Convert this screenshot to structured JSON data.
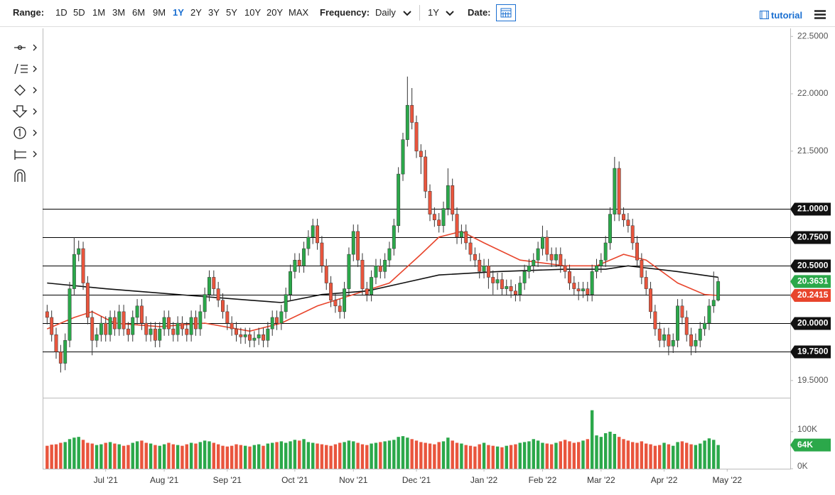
{
  "toolbar": {
    "range_label": "Range:",
    "ranges": [
      "1D",
      "5D",
      "1M",
      "3M",
      "6M",
      "9M",
      "1Y",
      "2Y",
      "3Y",
      "5Y",
      "10Y",
      "20Y",
      "MAX"
    ],
    "active_range_index": 6,
    "frequency_label": "Frequency:",
    "frequency": "Daily",
    "period": "1Y",
    "date_label": "Date:",
    "tutorial": "tutorial"
  },
  "chart_data": {
    "type": "candlestick",
    "up_color": "#2ba84a",
    "down_color": "#e9553d",
    "xlim": [
      -1,
      165
    ],
    "xticks": [
      {
        "value": 13,
        "label": "Jul '21"
      },
      {
        "value": 26,
        "label": "Aug '21"
      },
      {
        "value": 40,
        "label": "Sep '21"
      },
      {
        "value": 55,
        "label": "Oct '21"
      },
      {
        "value": 68,
        "label": "Nov '21"
      },
      {
        "value": 82,
        "label": "Dec '21"
      },
      {
        "value": 97,
        "label": "Jan '22"
      },
      {
        "value": 110,
        "label": "Feb '22"
      },
      {
        "value": 123,
        "label": "Mar '22"
      },
      {
        "value": 137,
        "label": "Apr '22"
      },
      {
        "value": 151,
        "label": "May '22"
      }
    ],
    "ylim": [
      19.35,
      22.57
    ],
    "yticks": [
      {
        "value": 19.5,
        "label": "19.5000"
      },
      {
        "value": 20,
        "label": "20.0000"
      },
      {
        "value": 20.5,
        "label": "20.5000"
      },
      {
        "value": 21,
        "label": "21.0000"
      },
      {
        "value": 21.5,
        "label": "21.5000"
      },
      {
        "value": 22,
        "label": "22.0000"
      },
      {
        "value": 22.5,
        "label": "22.5000"
      }
    ],
    "levels": [
      {
        "value": 21,
        "label": "21.0000"
      },
      {
        "value": 20.75,
        "label": "20.7500"
      },
      {
        "value": 20.5,
        "label": "20.5000"
      },
      20.25,
      {
        "value": 20,
        "label": "20.0000"
      },
      {
        "value": 19.75,
        "label": "19.7500"
      }
    ],
    "open": [
      20.1,
      20.05,
      19.9,
      19.75,
      19.65,
      19.85,
      20.3,
      20.6,
      20.65,
      20.35,
      20.05,
      19.85,
      19.9,
      20.0,
      19.9,
      20.05,
      19.95,
      20.1,
      19.95,
      19.9,
      20.05,
      20.15,
      20.0,
      19.9,
      19.95,
      19.85,
      19.95,
      20.05,
      19.95,
      19.9,
      20.0,
      19.95,
      19.9,
      20.05,
      19.95,
      20.1,
      20.25,
      20.4,
      20.3,
      20.2,
      20.1,
      20.0,
      19.95,
      19.9,
      19.88,
      19.9,
      19.85,
      19.87,
      19.9,
      19.85,
      19.95,
      20.05,
      20.0,
      20.1,
      20.25,
      20.45,
      20.55,
      20.5,
      20.65,
      20.75,
      20.85,
      20.7,
      20.5,
      20.35,
      20.2,
      20.15,
      20.1,
      20.3,
      20.6,
      20.8,
      20.55,
      20.3,
      20.25,
      20.4,
      20.5,
      20.45,
      20.55,
      20.65,
      20.85,
      21.3,
      21.6,
      21.9,
      21.75,
      21.5,
      21.45,
      21.15,
      20.95,
      20.9,
      20.85,
      21.0,
      21.2,
      20.95,
      20.75,
      20.8,
      20.7,
      20.6,
      20.55,
      20.45,
      20.5,
      20.4,
      20.35,
      20.38,
      20.3,
      20.32,
      20.28,
      20.25,
      20.35,
      20.45,
      20.5,
      20.55,
      20.65,
      20.75,
      20.6,
      20.55,
      20.6,
      20.5,
      20.45,
      20.35,
      20.3,
      20.28,
      20.3,
      20.25,
      20.45,
      20.5,
      20.55,
      20.7,
      20.95,
      21.35,
      20.95,
      20.9,
      20.85,
      20.7,
      20.55,
      20.4,
      20.3,
      20.1,
      19.95,
      19.85,
      19.9,
      19.8,
      19.85,
      20.15,
      20.05,
      19.9,
      19.8,
      19.85,
      19.95,
      20.0,
      20.15,
      20.2
    ],
    "high": [
      20.16,
      20.11,
      19.96,
      19.81,
      19.91,
      20.36,
      20.75,
      20.72,
      20.71,
      20.41,
      20.11,
      19.96,
      20.06,
      20.06,
      20.11,
      20.11,
      20.16,
      20.16,
      20.01,
      20.11,
      20.21,
      20.21,
      20.06,
      20.01,
      20.01,
      20.01,
      20.11,
      20.11,
      20.01,
      20.06,
      20.06,
      20.01,
      20.11,
      20.11,
      20.16,
      20.31,
      20.46,
      20.46,
      20.36,
      20.26,
      20.16,
      20.06,
      20.01,
      19.96,
      19.96,
      19.96,
      19.93,
      19.96,
      19.96,
      20.01,
      20.11,
      20.11,
      20.16,
      20.31,
      20.51,
      20.61,
      20.61,
      20.71,
      20.81,
      20.91,
      20.91,
      20.76,
      20.56,
      20.41,
      20.26,
      20.21,
      20.36,
      20.66,
      20.86,
      20.86,
      20.61,
      20.36,
      20.46,
      20.56,
      20.56,
      20.61,
      20.71,
      20.91,
      21.36,
      21.66,
      22.15,
      22.05,
      21.81,
      21.56,
      21.51,
      21.21,
      21.01,
      20.96,
      21.06,
      21.35,
      21.26,
      21.01,
      20.86,
      20.86,
      20.76,
      20.66,
      20.61,
      20.56,
      20.56,
      20.46,
      20.44,
      20.44,
      20.38,
      20.38,
      20.34,
      20.41,
      20.51,
      20.56,
      20.61,
      20.71,
      20.85,
      20.81,
      20.66,
      20.66,
      20.66,
      20.56,
      20.51,
      20.41,
      20.36,
      20.36,
      20.36,
      20.51,
      20.56,
      20.61,
      20.76,
      21.01,
      21.45,
      21.41,
      21.01,
      20.96,
      20.91,
      20.76,
      20.61,
      20.46,
      20.36,
      20.16,
      20.01,
      19.96,
      19.96,
      19.91,
      20.21,
      20.21,
      20.11,
      19.96,
      19.91,
      20.01,
      20.06,
      20.21,
      20.45,
      20.4
    ],
    "low": [
      19.99,
      19.84,
      19.69,
      19.57,
      19.59,
      19.79,
      20.24,
      20.54,
      20.29,
      19.99,
      19.72,
      19.79,
      19.84,
      19.84,
      19.84,
      19.89,
      19.89,
      19.89,
      19.84,
      19.84,
      19.99,
      19.94,
      19.84,
      19.84,
      19.79,
      19.79,
      19.89,
      19.89,
      19.84,
      19.84,
      19.89,
      19.84,
      19.84,
      19.89,
      19.89,
      20.04,
      20.19,
      20.24,
      20.14,
      20.04,
      19.94,
      19.89,
      19.84,
      19.82,
      19.82,
      19.79,
      19.79,
      19.81,
      19.79,
      19.79,
      19.89,
      19.94,
      19.94,
      20.04,
      20.19,
      20.39,
      20.44,
      20.44,
      20.59,
      20.69,
      20.64,
      20.44,
      20.29,
      20.14,
      20.09,
      20.04,
      20.04,
      20.24,
      20.54,
      20.49,
      20.24,
      20.19,
      20.19,
      20.34,
      20.39,
      20.39,
      20.49,
      20.59,
      20.79,
      21.24,
      21.54,
      21.69,
      21.44,
      21.3,
      21.09,
      20.89,
      20.84,
      20.79,
      20.79,
      20.94,
      20.89,
      20.69,
      20.69,
      20.64,
      20.54,
      20.49,
      20.39,
      20.39,
      20.3,
      20.25,
      20.29,
      20.24,
      20.24,
      20.22,
      20.19,
      20.19,
      20.29,
      20.39,
      20.44,
      20.49,
      20.59,
      20.54,
      20.49,
      20.49,
      20.44,
      20.39,
      20.29,
      20.24,
      20.2,
      20.22,
      20.19,
      20.19,
      20.39,
      20.44,
      20.49,
      20.64,
      20.89,
      20.89,
      20.84,
      20.79,
      20.64,
      20.49,
      20.34,
      20.24,
      20.04,
      19.89,
      19.79,
      19.79,
      19.72,
      19.74,
      19.79,
      19.99,
      19.84,
      19.72,
      19.74,
      19.79,
      19.89,
      19.94,
      20.09,
      20.19
    ],
    "close": [
      20.05,
      19.9,
      19.75,
      19.65,
      19.85,
      20.3,
      20.6,
      20.65,
      20.35,
      20.05,
      19.85,
      19.9,
      20.0,
      19.9,
      20.05,
      19.95,
      20.1,
      19.95,
      19.9,
      20.05,
      20.15,
      20.0,
      19.9,
      19.95,
      19.85,
      19.95,
      20.05,
      19.95,
      19.9,
      20.0,
      19.95,
      19.9,
      20.05,
      19.95,
      20.1,
      20.25,
      20.4,
      20.3,
      20.2,
      20.1,
      20.0,
      19.95,
      19.9,
      19.88,
      19.9,
      19.85,
      19.87,
      19.9,
      19.85,
      19.95,
      20.05,
      20.0,
      20.1,
      20.25,
      20.45,
      20.55,
      20.5,
      20.65,
      20.75,
      20.85,
      20.7,
      20.5,
      20.35,
      20.2,
      20.15,
      20.1,
      20.3,
      20.6,
      20.8,
      20.55,
      20.3,
      20.25,
      20.4,
      20.5,
      20.45,
      20.55,
      20.65,
      20.85,
      21.3,
      21.6,
      21.9,
      21.75,
      21.5,
      21.45,
      21.15,
      20.95,
      20.9,
      20.85,
      21.0,
      21.2,
      20.95,
      20.75,
      20.8,
      20.7,
      20.6,
      20.55,
      20.45,
      20.5,
      20.4,
      20.35,
      20.38,
      20.3,
      20.32,
      20.28,
      20.25,
      20.35,
      20.45,
      20.5,
      20.55,
      20.65,
      20.75,
      20.6,
      20.55,
      20.6,
      20.5,
      20.45,
      20.35,
      20.3,
      20.28,
      20.3,
      20.25,
      20.45,
      20.5,
      20.55,
      20.7,
      20.95,
      21.35,
      20.95,
      20.9,
      20.85,
      20.7,
      20.55,
      20.4,
      20.3,
      20.1,
      19.95,
      19.85,
      19.9,
      19.8,
      19.85,
      20.15,
      20.05,
      19.9,
      19.8,
      19.85,
      19.95,
      20.0,
      20.15,
      20.2,
      20.3631
    ],
    "moving_averages": [
      {
        "color": "#e8452c",
        "x": [
          0,
          6,
          10,
          15,
          25,
          35,
          45,
          52,
          60,
          68,
          76,
          83,
          87,
          92,
          97,
          105,
          115,
          122,
          128,
          133,
          140,
          146,
          149
        ],
        "values": [
          19.95,
          20.05,
          20.1,
          20.0,
          19.97,
          20.0,
          19.93,
          20.0,
          20.15,
          20.25,
          20.35,
          20.6,
          20.75,
          20.8,
          20.7,
          20.55,
          20.5,
          20.5,
          20.6,
          20.55,
          20.35,
          20.25,
          20.2415
        ]
      },
      {
        "color": "#111111",
        "x": [
          0,
          13,
          29,
          45,
          52,
          61,
          71,
          79,
          87,
          100,
          115,
          124,
          129,
          140,
          149
        ],
        "values": [
          20.35,
          20.3,
          20.25,
          20.2,
          20.18,
          20.25,
          20.28,
          20.35,
          20.42,
          20.45,
          20.47,
          20.47,
          20.5,
          20.45,
          20.4
        ]
      }
    ],
    "volume": {
      "values": [
        62,
        65,
        66,
        70,
        72,
        80,
        84,
        86,
        78,
        70,
        68,
        64,
        66,
        70,
        72,
        68,
        66,
        62,
        64,
        70,
        74,
        76,
        70,
        68,
        64,
        62,
        66,
        70,
        66,
        64,
        62,
        66,
        70,
        68,
        72,
        76,
        74,
        70,
        66,
        62,
        60,
        62,
        66,
        64,
        62,
        60,
        64,
        66,
        62,
        68,
        70,
        72,
        74,
        70,
        74,
        78,
        76,
        80,
        72,
        70,
        68,
        66,
        64,
        62,
        66,
        70,
        72,
        76,
        74,
        70,
        66,
        64,
        68,
        70,
        72,
        74,
        76,
        78,
        86,
        88,
        84,
        80,
        76,
        72,
        70,
        68,
        66,
        72,
        74,
        84,
        76,
        70,
        68,
        64,
        62,
        60,
        66,
        70,
        64,
        62,
        60,
        58,
        62,
        64,
        66,
        70,
        72,
        74,
        80,
        76,
        70,
        68,
        66,
        70,
        74,
        78,
        74,
        70,
        72,
        76,
        80,
        158,
        90,
        86,
        96,
        100,
        94,
        86,
        80,
        76,
        72,
        70,
        74,
        68,
        66,
        62,
        64,
        70,
        66,
        62,
        72,
        74,
        70,
        66,
        64,
        68,
        76,
        82,
        78,
        64
      ],
      "ylim": [
        0,
        188
      ],
      "yticks": [
        {
          "value": 0,
          "label": "0K"
        },
        {
          "value": 100,
          "label": "100K"
        }
      ],
      "last_label": "64K"
    }
  }
}
